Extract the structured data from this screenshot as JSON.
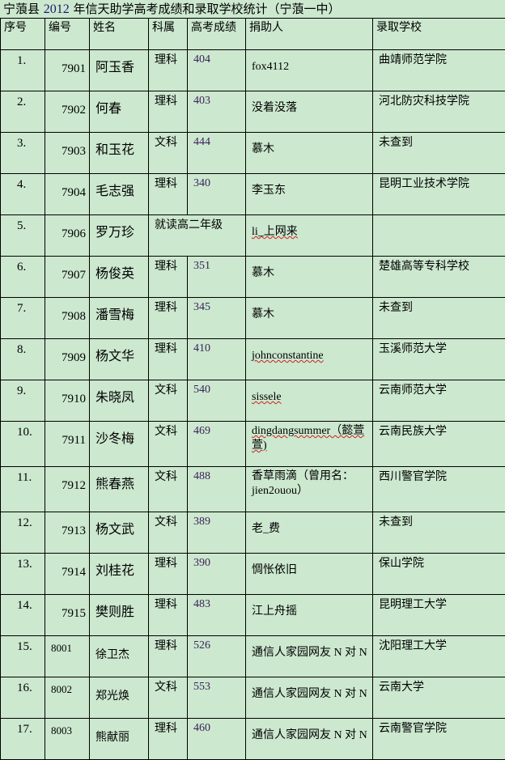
{
  "title": {
    "prefix": "宁蒗县 ",
    "year": "2012",
    "suffix": " 年信天助学高考成绩和录取学校统计（宁蒗一中）"
  },
  "columns": [
    "序号",
    "编号",
    "姓名",
    "科属",
    "高考成绩",
    "捐助人",
    "录取学校"
  ],
  "rows": [
    {
      "seq": "1.",
      "id": "7901",
      "name": "阿玉香",
      "subject": "理科",
      "score": "404",
      "donor": "fox4112",
      "school": "曲靖师范学院"
    },
    {
      "seq": "2.",
      "id": "7902",
      "name": "何春",
      "subject": "理科",
      "score": "403",
      "donor": "没着没落",
      "school": "河北防灾科技学院"
    },
    {
      "seq": "3.",
      "id": "7903",
      "name": "和玉花",
      "subject": "文科",
      "score": "444",
      "donor": "慕木",
      "school": "未查到"
    },
    {
      "seq": "4.",
      "id": "7904",
      "name": "毛志强",
      "subject": "理科",
      "score": "340",
      "donor": "李玉东",
      "school": "昆明工业技术学院"
    },
    {
      "seq": "5.",
      "id": "7906",
      "name": "罗万珍",
      "subject": "就读高二年级",
      "score": "",
      "donor": "li_上网来",
      "school": ""
    },
    {
      "seq": "6.",
      "id": "7907",
      "name": "杨俊英",
      "subject": "理科",
      "score": "351",
      "donor": "慕木",
      "school": "楚雄高等专科学校"
    },
    {
      "seq": "7.",
      "id": "7908",
      "name": "潘雪梅",
      "subject": "理科",
      "score": "345",
      "donor": "慕木",
      "school": "未查到"
    },
    {
      "seq": "8.",
      "id": "7909",
      "name": "杨文华",
      "subject": "理科",
      "score": "410",
      "donor": "johnconstantine",
      "school": "玉溪师范大学"
    },
    {
      "seq": "9.",
      "id": "7910",
      "name": "朱晓凤",
      "subject": "文科",
      "score": "540",
      "donor": "sissele",
      "school": "云南师范大学"
    },
    {
      "seq": "10.",
      "id": "7911",
      "name": "沙冬梅",
      "subject": "文科",
      "score": "469",
      "donor": "dingdangsummer（懿萱萱)",
      "school": "云南民族大学"
    },
    {
      "seq": "11.",
      "id": "7912",
      "name": "熊春燕",
      "subject": "文科",
      "score": "488",
      "donor": "香草雨滴（曾用名：jien2ouou）",
      "school": "西川警官学院"
    },
    {
      "seq": "12.",
      "id": "7913",
      "name": "杨文武",
      "subject": "文科",
      "score": "389",
      "donor": "老_费",
      "school": "未查到"
    },
    {
      "seq": "13.",
      "id": "7914",
      "name": "刘桂花",
      "subject": "理科",
      "score": "390",
      "donor": "惆怅依旧",
      "school": "保山学院"
    },
    {
      "seq": "14.",
      "id": "7915",
      "name": "樊则胜",
      "subject": "理科",
      "score": "483",
      "donor": "江上舟摇",
      "school": "昆明理工大学"
    },
    {
      "seq": "15.",
      "id": "8001",
      "name": "徐卫杰",
      "subject": "理科",
      "score": "526",
      "donor": "通信人家园网友 N 对 N",
      "school": "沈阳理工大学"
    },
    {
      "seq": "16.",
      "id": "8002",
      "name": "郑光焕",
      "subject": "文科",
      "score": "553",
      "donor": "通信人家园网友 N 对 N",
      "school": "云南大学"
    },
    {
      "seq": "17.",
      "id": "8003",
      "name": "熊献丽",
      "subject": "理科",
      "score": "460",
      "donor": "通信人家园网友 N 对 N",
      "school": "云南警官学院"
    }
  ],
  "colors": {
    "background": "#cce8cf",
    "border": "#000000",
    "score_text": "#3a1f5a",
    "spellcheck_underline": "#d02020"
  }
}
